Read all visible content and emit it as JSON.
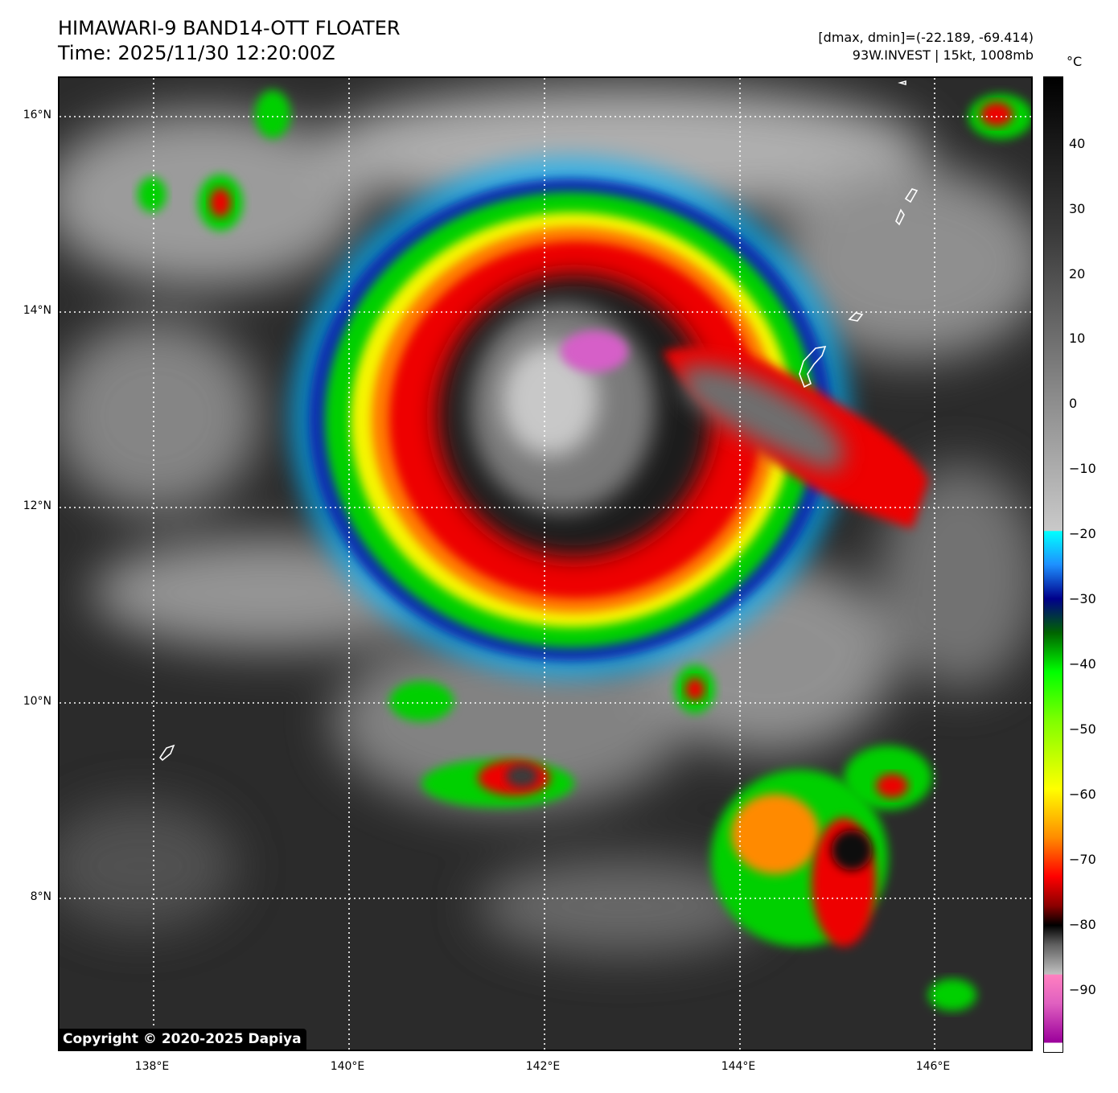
{
  "title": "HIMAWARI-9 BAND14-OTT FLOATER",
  "time": "Time: 2025/11/30 12:20:00Z",
  "dmax_dmin": "[dmax, dmin]=(-22.189, -69.414)",
  "storm": "93W.INVEST | 15kt, 1008mb",
  "unit": "°C",
  "copyright": "Copyright © 2020-2025 Dapiya",
  "lat_labels": [
    "16°N",
    "14°N",
    "12°N",
    "10°N",
    "8°N"
  ],
  "lon_labels": [
    "138°E",
    "140°E",
    "142°E",
    "144°E",
    "146°E"
  ],
  "colorbar_ticks": [
    "40",
    "30",
    "20",
    "10",
    "0",
    "−10",
    "−20",
    "−30",
    "−40",
    "−50",
    "−60",
    "−70",
    "−80",
    "−90"
  ],
  "colors": {
    "grid": "#ffffff",
    "coastline": "#ffffff",
    "cold_top": "#000000",
    "red": "#ff0000",
    "yellow": "#ffff00",
    "green": "#00ff00",
    "blue": "#00008b",
    "cyan": "#00ffff",
    "magenta": "#ff80c0"
  }
}
